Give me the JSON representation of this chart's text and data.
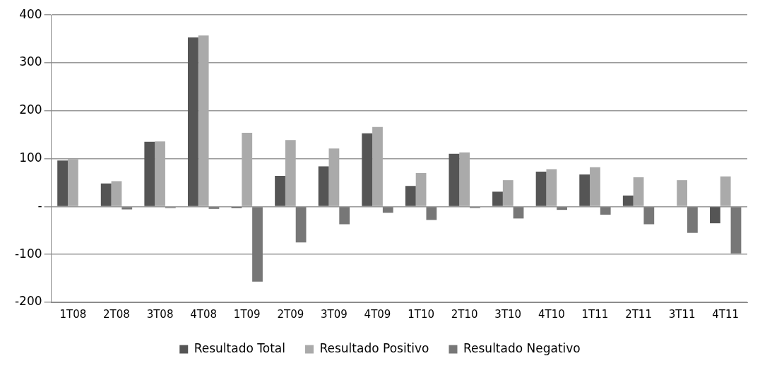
{
  "chart_data": {
    "type": "bar",
    "categories": [
      "1T08",
      "2T08",
      "3T08",
      "4T08",
      "1T09",
      "2T09",
      "3T09",
      "4T09",
      "1T10",
      "2T10",
      "3T10",
      "4T10",
      "1T11",
      "2T11",
      "3T11",
      "4T11"
    ],
    "series": [
      {
        "name": "Resultado Total",
        "color": "#555555",
        "values": [
          96,
          48,
          135,
          353,
          -3,
          64,
          84,
          153,
          43,
          110,
          31,
          73,
          67,
          23,
          0,
          -35
        ]
      },
      {
        "name": "Resultado Positivo",
        "color": "#aaaaaa",
        "values": [
          99,
          53,
          136,
          357,
          154,
          139,
          121,
          166,
          70,
          113,
          55,
          78,
          82,
          61,
          55,
          63
        ]
      },
      {
        "name": "Resultado Negativo",
        "color": "#777777",
        "values": [
          null,
          -6,
          -3,
          -5,
          -157,
          -75,
          -37,
          -13,
          -28,
          -3,
          -25,
          -7,
          -17,
          -37,
          -55,
          -98
        ]
      }
    ],
    "ylim": [
      -200,
      400
    ],
    "yticks": [
      {
        "value": -200,
        "label": "-200"
      },
      {
        "value": -100,
        "label": "-100"
      },
      {
        "value": 0,
        "label": "-"
      },
      {
        "value": 100,
        "label": "100"
      },
      {
        "value": 200,
        "label": "200"
      },
      {
        "value": 300,
        "label": "300"
      },
      {
        "value": 400,
        "label": "400"
      }
    ],
    "grid": "y",
    "legend": "bottom"
  }
}
